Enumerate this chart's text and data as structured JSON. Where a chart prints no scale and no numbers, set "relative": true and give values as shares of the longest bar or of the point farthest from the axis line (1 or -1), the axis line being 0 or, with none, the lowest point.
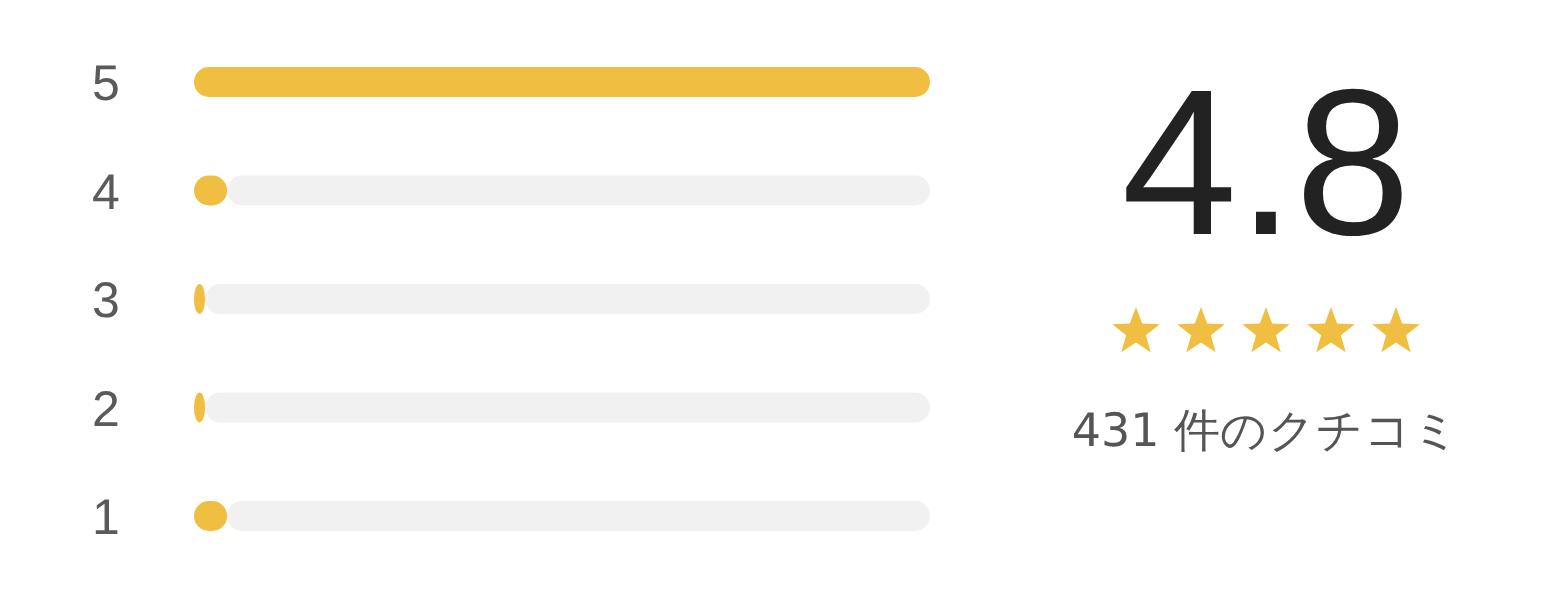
{
  "chart_data": [
    {
      "type": "bar",
      "orientation": "horizontal",
      "stacked": true,
      "relative": true,
      "categories": [
        "5",
        "4",
        "3",
        "2",
        "1"
      ],
      "series": [
        {
          "color": "#f0be41",
          "values": [
            1,
            0.045,
            0.015,
            0.015,
            0.045
          ]
        },
        {
          "color": "#f1f1f1",
          "values": [
            0,
            0.955,
            0.985,
            0.985,
            0.955
          ]
        }
      ]
    },
    {
      "type": "other",
      "title": "4.8",
      "annotations": [
        "431 件のクチコミ"
      ]
    }
  ]
}
